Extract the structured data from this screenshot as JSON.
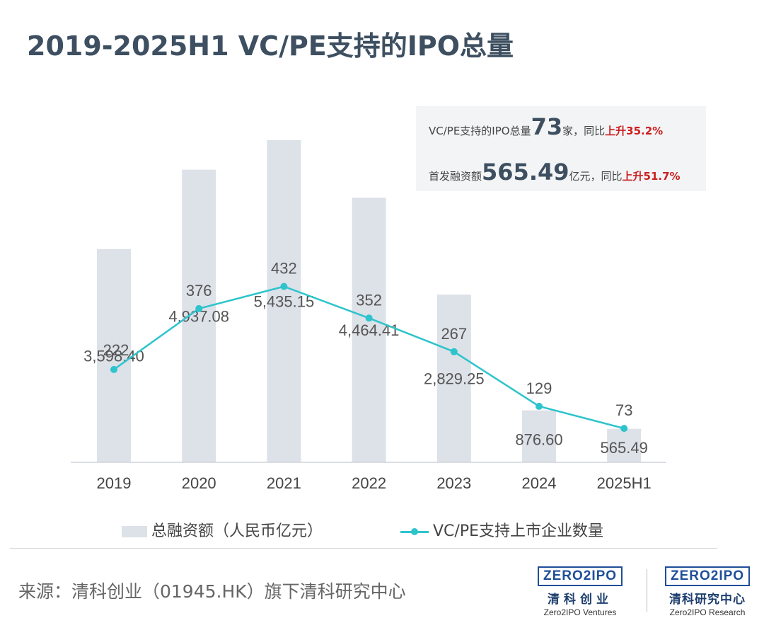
{
  "title": "2019-2025H1 VC/PE支持的IPO总量",
  "chart_data": {
    "type": "bar",
    "categories": [
      "2019",
      "2020",
      "2021",
      "2022",
      "2023",
      "2024",
      "2025H1"
    ],
    "series": [
      {
        "name": "总融资额（人民币亿元）",
        "type": "bar",
        "values": [
          3598.4,
          4937.08,
          5435.15,
          4464.41,
          2829.25,
          876.6,
          565.49
        ],
        "labels": [
          "3,598.40",
          "4,937.08",
          "5,435.15",
          "4,464.41",
          "2,829.25",
          "876.60",
          "565.49"
        ],
        "color": "#dde1e8"
      },
      {
        "name": "VC/PE支持上市企业数量",
        "type": "line",
        "values": [
          222,
          376,
          432,
          352,
          267,
          129,
          73
        ],
        "labels": [
          "222",
          "376",
          "432",
          "352",
          "267",
          "129",
          "73"
        ],
        "color": "#2ec4cc"
      }
    ],
    "legend": "bottom",
    "grid": false
  },
  "callout": {
    "line1_prefix": "VC/PE支持的IPO总量",
    "line1_value": "73",
    "line1_suffix": "家，同比",
    "line1_change": "上升35.2%",
    "line2_prefix": "首发融资额",
    "line2_value": "565.49",
    "line2_suffix": "亿元，同比",
    "line2_change": "上升51.7%"
  },
  "source": "来源：清科创业（01945.HK）旗下清科研究中心",
  "logos": [
    {
      "mark": "ZERO2IPO",
      "cn": "清科创业",
      "en": "Zero2IPO Ventures"
    },
    {
      "mark": "ZERO2IPO",
      "cn": "清科研究中心",
      "en": "Zero2IPO Research"
    }
  ],
  "colors": {
    "title": "#3d4f60",
    "bar": "#dde1e8",
    "line": "#2ec4cc",
    "up": "#cc1f1f",
    "logo": "#1f4e9a"
  }
}
